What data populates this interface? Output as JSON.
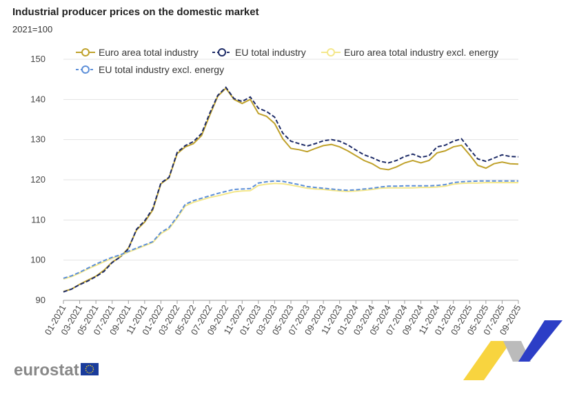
{
  "chart_data": {
    "type": "line",
    "title": "Industrial producer prices on the domestic market",
    "subtitle": "2021=100",
    "categories": [
      "01-2021",
      null,
      "03-2021",
      null,
      "05-2021",
      null,
      "07-2021",
      null,
      "09-2021",
      null,
      "11-2021",
      null,
      "01-2022",
      null,
      "03-2022",
      null,
      "05-2022",
      null,
      "07-2022",
      null,
      "09-2022",
      null,
      "11-2022",
      null,
      "01-2023",
      null,
      "03-2023",
      null,
      "05-2023",
      null,
      "07-2023",
      null,
      "09-2023",
      null,
      "11-2023",
      null,
      "01-2024",
      null,
      "03-2024",
      null,
      "05-2024",
      null,
      "07-2024",
      null,
      "09-2024",
      null,
      "11-2024",
      null,
      "01-2025",
      null,
      "03-2025",
      null,
      "05-2025",
      null,
      "07-2025",
      null,
      "09-2025"
    ],
    "series": [
      {
        "name": "Euro area total industry",
        "color": "#bfa12a",
        "dashed": false,
        "values": [
          92.2,
          92.8,
          94,
          95,
          96,
          97.5,
          99.5,
          100.8,
          103,
          107.5,
          109.5,
          112.5,
          119,
          120.5,
          126.5,
          128.2,
          129,
          131,
          136,
          140.8,
          142.8,
          140,
          139,
          140,
          136.5,
          135.8,
          134,
          130.2,
          127.8,
          127.5,
          127,
          127.8,
          128.5,
          128.8,
          128.2,
          127.2,
          126,
          124.8,
          124,
          122.8,
          122.5,
          123.2,
          124.2,
          124.8,
          124.2,
          124.8,
          126.7,
          127.2,
          128.2,
          128.6,
          126.2,
          123.6,
          122.9,
          124,
          124.4,
          124,
          123.9
        ]
      },
      {
        "name": "EU total industry",
        "color": "#1c2a66",
        "dashed": true,
        "values": [
          92.1,
          92.8,
          93.9,
          94.8,
          95.9,
          97.2,
          99.4,
          100.8,
          102.8,
          107.7,
          109.8,
          112.8,
          119.2,
          120.6,
          126.8,
          128.5,
          129.5,
          131.5,
          136.5,
          141,
          143,
          140.2,
          139.5,
          140.6,
          137.8,
          137,
          135.6,
          131.6,
          129.6,
          129,
          128.4,
          129,
          129.7,
          130,
          129.6,
          128.7,
          127.4,
          126.2,
          125.5,
          124.6,
          124.2,
          124.8,
          125.8,
          126.4,
          125.6,
          126,
          128.2,
          128.6,
          129.6,
          130.2,
          127.6,
          125.2,
          124.6,
          125.4,
          126.2,
          125.8,
          125.7
        ]
      },
      {
        "name": "Euro area total industry excl. energy",
        "color": "#f4e78a",
        "dashed": false,
        "values": [
          95.3,
          95.9,
          96.8,
          97.8,
          98.7,
          99.6,
          100.5,
          101.1,
          102,
          102.8,
          103.6,
          104.4,
          106.6,
          107.8,
          110.5,
          113.5,
          114.4,
          115,
          115.6,
          116,
          116.5,
          117,
          117.2,
          117.3,
          118.6,
          118.9,
          119.1,
          119,
          118.7,
          118.3,
          117.9,
          117.7,
          117.6,
          117.4,
          117.2,
          117.1,
          117.2,
          117.4,
          117.6,
          117.9,
          118,
          118,
          118,
          118,
          118.1,
          118.1,
          118.2,
          118.4,
          118.9,
          119.1,
          119.2,
          119.2,
          119.3,
          119.3,
          119.3,
          119.3,
          119.3
        ]
      },
      {
        "name": "EU total industry excl. energy",
        "color": "#5b8ed8",
        "dashed": true,
        "values": [
          95.5,
          96.1,
          97,
          98,
          99,
          99.9,
          100.7,
          101.3,
          102.2,
          103,
          103.8,
          104.6,
          106.9,
          108.1,
          110.8,
          113.9,
          114.8,
          115.4,
          116,
          116.6,
          117.1,
          117.6,
          117.7,
          117.8,
          119.2,
          119.5,
          119.7,
          119.6,
          119.2,
          118.8,
          118.3,
          118.1,
          117.9,
          117.7,
          117.5,
          117.4,
          117.5,
          117.7,
          117.9,
          118.2,
          118.4,
          118.4,
          118.5,
          118.5,
          118.5,
          118.5,
          118.6,
          118.8,
          119.3,
          119.5,
          119.6,
          119.7,
          119.7,
          119.7,
          119.7,
          119.7,
          119.7
        ]
      }
    ],
    "ylim": [
      90,
      150
    ],
    "yticks": [
      90,
      100,
      110,
      120,
      130,
      140,
      150
    ],
    "grid": true
  },
  "footer": {
    "logo": "eurostat"
  }
}
